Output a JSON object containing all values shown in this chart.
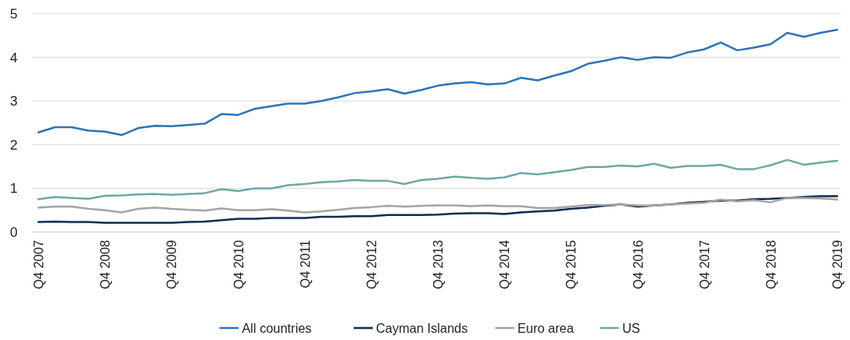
{
  "chart_data": {
    "type": "line",
    "categories": [
      "Q4 2007",
      null,
      null,
      null,
      "Q4 2008",
      null,
      null,
      null,
      "Q4 2009",
      null,
      null,
      null,
      "Q4 2010",
      null,
      null,
      null,
      "Q4 2011",
      null,
      null,
      null,
      "Q4 2012",
      null,
      null,
      null,
      "Q4 2013",
      null,
      null,
      null,
      "Q4 2014",
      null,
      null,
      null,
      "Q4 2015",
      null,
      null,
      null,
      "Q4 2016",
      null,
      null,
      null,
      "Q4 2017",
      null,
      null,
      null,
      "Q4 2018",
      null,
      null,
      null,
      "Q4 2019"
    ],
    "series": [
      {
        "name": "All countries",
        "color": "#2e75b6",
        "values": [
          2.28,
          2.4,
          2.4,
          2.32,
          2.3,
          2.22,
          2.38,
          2.43,
          2.42,
          2.45,
          2.48,
          2.7,
          2.68,
          2.82,
          2.88,
          2.94,
          2.94,
          3.0,
          3.08,
          3.18,
          3.22,
          3.27,
          3.17,
          3.25,
          3.35,
          3.4,
          3.43,
          3.38,
          3.4,
          3.53,
          3.47,
          3.58,
          3.68,
          3.85,
          3.92,
          4.0,
          3.94,
          4.0,
          3.99,
          4.11,
          4.18,
          4.34,
          4.16,
          4.22,
          4.3,
          4.56,
          4.47,
          4.56,
          4.63
        ]
      },
      {
        "name": "Cayman Islands",
        "color": "#0d2f4f",
        "values": [
          0.23,
          0.24,
          0.23,
          0.23,
          0.21,
          0.21,
          0.21,
          0.21,
          0.21,
          0.23,
          0.24,
          0.27,
          0.3,
          0.3,
          0.32,
          0.32,
          0.32,
          0.35,
          0.35,
          0.36,
          0.36,
          0.39,
          0.39,
          0.39,
          0.4,
          0.42,
          0.43,
          0.43,
          0.41,
          0.45,
          0.47,
          0.49,
          0.53,
          0.56,
          0.6,
          0.63,
          0.58,
          0.61,
          0.63,
          0.67,
          0.69,
          0.72,
          0.72,
          0.75,
          0.76,
          0.78,
          0.8,
          0.82,
          0.82
        ]
      },
      {
        "name": "Euro area",
        "color": "#a5a5a5",
        "values": [
          0.56,
          0.58,
          0.58,
          0.53,
          0.5,
          0.45,
          0.53,
          0.56,
          0.53,
          0.51,
          0.49,
          0.54,
          0.5,
          0.5,
          0.52,
          0.49,
          0.45,
          0.47,
          0.51,
          0.55,
          0.57,
          0.6,
          0.58,
          0.6,
          0.61,
          0.61,
          0.59,
          0.61,
          0.59,
          0.59,
          0.55,
          0.55,
          0.58,
          0.62,
          0.62,
          0.63,
          0.61,
          0.61,
          0.63,
          0.65,
          0.67,
          0.74,
          0.7,
          0.73,
          0.68,
          0.78,
          0.78,
          0.77,
          0.74
        ]
      },
      {
        "name": "US",
        "color": "#70a8a4",
        "values": [
          0.75,
          0.8,
          0.78,
          0.76,
          0.83,
          0.84,
          0.86,
          0.87,
          0.85,
          0.87,
          0.89,
          0.98,
          0.94,
          1.0,
          1.0,
          1.07,
          1.1,
          1.14,
          1.16,
          1.19,
          1.17,
          1.17,
          1.1,
          1.19,
          1.22,
          1.27,
          1.24,
          1.22,
          1.25,
          1.35,
          1.32,
          1.37,
          1.42,
          1.49,
          1.49,
          1.52,
          1.5,
          1.56,
          1.47,
          1.51,
          1.51,
          1.54,
          1.44,
          1.44,
          1.53,
          1.65,
          1.54,
          1.59,
          1.63
        ]
      }
    ],
    "ylim": [
      0,
      5
    ],
    "yticks": [
      0,
      1,
      2,
      3,
      4,
      5
    ],
    "grid": "y",
    "legend": "bottom",
    "line_style": "solid",
    "marker": "none"
  }
}
